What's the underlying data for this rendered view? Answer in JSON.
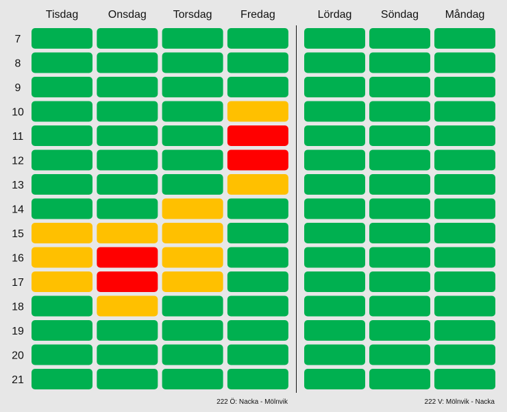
{
  "chart_data": {
    "type": "heatmap",
    "colors": {
      "green": "#00b050",
      "yellow": "#ffc000",
      "red": "#ff0000"
    },
    "rows": [
      "7",
      "8",
      "9",
      "10",
      "11",
      "12",
      "13",
      "14",
      "15",
      "16",
      "17",
      "18",
      "19",
      "20",
      "21"
    ],
    "panels": [
      {
        "caption": "222 Ö: Nacka - Mölnvik",
        "columns": [
          "Tisdag",
          "Onsdag",
          "Torsdag",
          "Fredag"
        ],
        "cells": [
          [
            "green",
            "green",
            "green",
            "green"
          ],
          [
            "green",
            "green",
            "green",
            "green"
          ],
          [
            "green",
            "green",
            "green",
            "green"
          ],
          [
            "green",
            "green",
            "green",
            "yellow"
          ],
          [
            "green",
            "green",
            "green",
            "red"
          ],
          [
            "green",
            "green",
            "green",
            "red"
          ],
          [
            "green",
            "green",
            "green",
            "yellow"
          ],
          [
            "green",
            "green",
            "yellow",
            "green"
          ],
          [
            "yellow",
            "yellow",
            "yellow",
            "green"
          ],
          [
            "yellow",
            "red",
            "yellow",
            "green"
          ],
          [
            "yellow",
            "red",
            "yellow",
            "green"
          ],
          [
            "green",
            "yellow",
            "green",
            "green"
          ],
          [
            "green",
            "green",
            "green",
            "green"
          ],
          [
            "green",
            "green",
            "green",
            "green"
          ],
          [
            "green",
            "green",
            "green",
            "green"
          ]
        ]
      },
      {
        "caption": "222 V: Mölnvik - Nacka",
        "columns": [
          "Lördag",
          "Söndag",
          "Måndag"
        ],
        "cells": [
          [
            "green",
            "green",
            "green"
          ],
          [
            "green",
            "green",
            "green"
          ],
          [
            "green",
            "green",
            "green"
          ],
          [
            "green",
            "green",
            "green"
          ],
          [
            "green",
            "green",
            "green"
          ],
          [
            "green",
            "green",
            "green"
          ],
          [
            "green",
            "green",
            "green"
          ],
          [
            "green",
            "green",
            "green"
          ],
          [
            "green",
            "green",
            "green"
          ],
          [
            "green",
            "green",
            "green"
          ],
          [
            "green",
            "green",
            "green"
          ],
          [
            "green",
            "green",
            "green"
          ],
          [
            "green",
            "green",
            "green"
          ],
          [
            "green",
            "green",
            "green"
          ],
          [
            "green",
            "green",
            "green"
          ]
        ]
      }
    ]
  }
}
